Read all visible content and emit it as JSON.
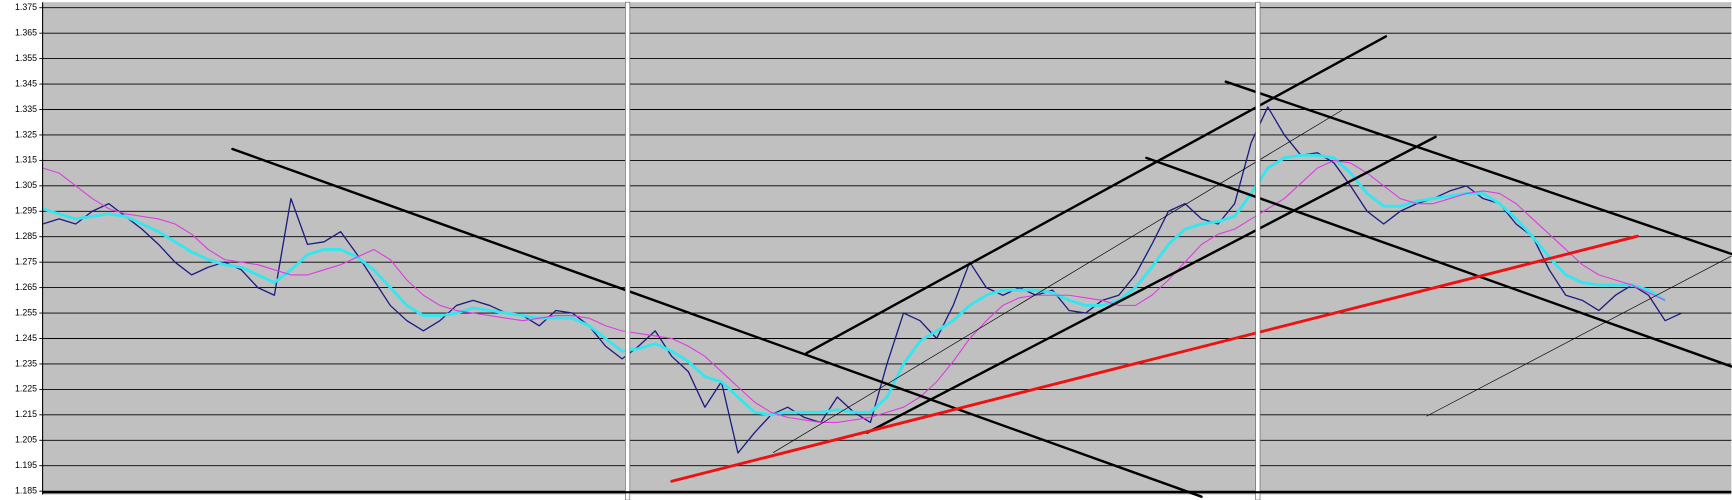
{
  "chart_data": {
    "type": "line",
    "ylim": [
      1.185,
      1.375
    ],
    "yticks": [
      1.185,
      1.195,
      1.205,
      1.215,
      1.225,
      1.235,
      1.245,
      1.255,
      1.265,
      1.275,
      1.285,
      1.295,
      1.305,
      1.315,
      1.325,
      1.335,
      1.345,
      1.355,
      1.365,
      1.375
    ],
    "grid": true,
    "series": [
      {
        "color": "#1c1c84",
        "values": [
          1.29,
          1.292,
          1.29,
          1.295,
          1.298,
          1.293,
          1.288,
          1.282,
          1.275,
          1.27,
          1.273,
          1.275,
          1.272,
          1.265,
          1.262,
          1.3,
          1.282,
          1.283,
          1.287,
          1.278,
          1.268,
          1.258,
          1.252,
          1.248,
          1.252,
          1.258,
          1.26,
          1.258,
          1.255,
          1.254,
          1.25,
          1.256,
          1.255,
          1.25,
          1.242,
          1.237,
          1.242,
          1.248,
          1.238,
          1.232,
          1.218,
          1.228,
          1.2,
          1.208,
          1.215,
          1.218,
          1.214,
          1.212,
          1.222,
          1.216,
          1.212,
          1.235,
          1.255,
          1.252,
          1.245,
          1.258,
          1.275,
          1.265,
          1.262,
          1.265,
          1.262,
          1.264,
          1.256,
          1.255,
          1.26,
          1.262,
          1.27,
          1.282,
          1.295,
          1.298,
          1.292,
          1.29,
          1.298,
          1.322,
          1.336,
          1.325,
          1.317,
          1.318,
          1.314,
          1.305,
          1.295,
          1.29,
          1.295,
          1.298,
          1.3,
          1.303,
          1.305,
          1.3,
          1.298,
          1.29,
          1.285,
          1.272,
          1.262,
          1.26,
          1.256,
          1.262,
          1.266,
          1.262,
          1.252,
          1.255,
          null,
          null,
          null
        ]
      },
      {
        "color": "#33e6f0",
        "values": [
          1.296,
          1.294,
          1.292,
          1.293,
          1.294,
          1.293,
          1.29,
          1.287,
          1.283,
          1.279,
          1.276,
          1.274,
          1.273,
          1.27,
          1.267,
          1.272,
          1.278,
          1.28,
          1.28,
          1.277,
          1.272,
          1.265,
          1.258,
          1.254,
          1.254,
          1.255,
          1.257,
          1.256,
          1.255,
          1.254,
          1.253,
          1.253,
          1.253,
          1.25,
          1.245,
          1.24,
          1.241,
          1.243,
          1.24,
          1.236,
          1.23,
          1.228,
          1.222,
          1.216,
          1.215,
          1.216,
          1.216,
          1.216,
          1.217,
          1.216,
          1.216,
          1.222,
          1.235,
          1.244,
          1.248,
          1.252,
          1.258,
          1.262,
          1.264,
          1.264,
          1.264,
          1.263,
          1.26,
          1.258,
          1.258,
          1.26,
          1.265,
          1.273,
          1.282,
          1.288,
          1.29,
          1.291,
          1.293,
          1.302,
          1.312,
          1.316,
          1.317,
          1.317,
          1.316,
          1.31,
          1.302,
          1.297,
          1.297,
          1.299,
          1.3,
          1.301,
          1.302,
          1.302,
          1.298,
          1.292,
          1.285,
          1.277,
          1.27,
          1.267,
          1.266,
          1.266,
          1.266,
          1.264,
          1.26,
          null,
          null,
          null,
          null
        ]
      },
      {
        "color": "#e03ce0",
        "values": [
          1.312,
          1.31,
          1.305,
          1.3,
          1.296,
          1.294,
          1.293,
          1.292,
          1.29,
          1.286,
          1.28,
          1.276,
          1.275,
          1.274,
          1.272,
          1.27,
          1.27,
          1.272,
          1.274,
          1.277,
          1.28,
          1.276,
          1.268,
          1.262,
          1.258,
          1.256,
          1.255,
          1.254,
          1.253,
          1.252,
          1.253,
          1.254,
          1.254,
          1.253,
          1.25,
          1.248,
          1.247,
          1.246,
          1.245,
          1.242,
          1.238,
          1.232,
          1.226,
          1.22,
          1.216,
          1.214,
          1.213,
          1.212,
          1.212,
          1.213,
          1.214,
          1.216,
          1.218,
          1.222,
          1.228,
          1.236,
          1.245,
          1.252,
          1.258,
          1.261,
          1.262,
          1.262,
          1.262,
          1.261,
          1.26,
          1.258,
          1.258,
          1.262,
          1.268,
          1.275,
          1.282,
          1.286,
          1.288,
          1.292,
          1.296,
          1.3,
          1.306,
          1.312,
          1.315,
          1.314,
          1.31,
          1.305,
          1.3,
          1.298,
          1.298,
          1.3,
          1.302,
          1.303,
          1.302,
          1.298,
          1.292,
          1.286,
          1.28,
          1.274,
          1.27,
          1.268,
          1.266,
          1.263,
          1.26,
          null,
          null,
          null,
          null
        ]
      }
    ]
  }
}
